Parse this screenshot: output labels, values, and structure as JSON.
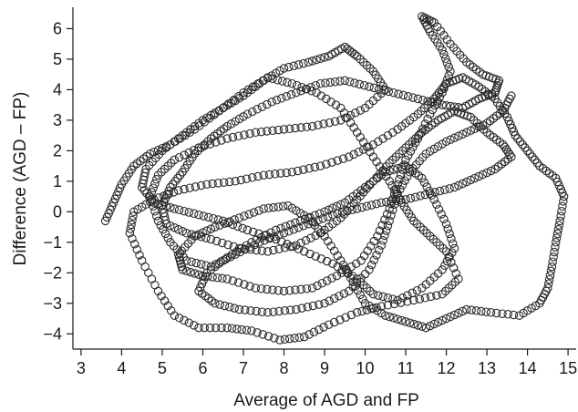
{
  "chart_data": {
    "type": "scatter",
    "title": "",
    "xlabel": "Average of AGD and FP",
    "ylabel": "Difference (AGD – FP)",
    "xlim": [
      2.8,
      15.2
    ],
    "ylim": [
      -4.5,
      6.7
    ],
    "xticks": [
      "3",
      "4",
      "5",
      "6",
      "7",
      "8",
      "9",
      "10",
      "11",
      "12",
      "13",
      "14",
      "15"
    ],
    "yticks": [
      "-4",
      "-3",
      "-2",
      "-1",
      "0",
      "1",
      "2",
      "3",
      "4",
      "5",
      "6"
    ],
    "grid": false,
    "marker": "open-circle",
    "marker_color": "#2a2a2a",
    "series": [
      {
        "values": [
          [
            3.6,
            -0.3
          ],
          [
            3.8,
            0.3
          ],
          [
            4.0,
            0.9
          ],
          [
            4.3,
            1.5
          ],
          [
            4.7,
            1.9
          ],
          [
            5.2,
            2.2
          ],
          [
            5.8,
            2.7
          ],
          [
            6.4,
            3.3
          ],
          [
            7.0,
            3.9
          ],
          [
            7.6,
            4.4
          ],
          [
            8.2,
            4.2
          ],
          [
            8.8,
            3.9
          ],
          [
            9.4,
            3.4
          ],
          [
            9.8,
            2.6
          ],
          [
            10.2,
            1.8
          ],
          [
            10.6,
            1.0
          ],
          [
            10.9,
            0.3
          ],
          [
            11.2,
            -0.3
          ],
          [
            11.6,
            -0.8
          ],
          [
            12.0,
            -1.3
          ],
          [
            12.3,
            -2.2
          ],
          [
            11.9,
            -2.7
          ],
          [
            11.2,
            -2.9
          ],
          [
            10.4,
            -3.1
          ],
          [
            9.8,
            -3.3
          ],
          [
            9.1,
            -3.7
          ],
          [
            8.5,
            -4.1
          ],
          [
            7.9,
            -4.2
          ],
          [
            7.2,
            -3.9
          ],
          [
            6.6,
            -3.8
          ],
          [
            5.9,
            -3.8
          ],
          [
            5.3,
            -3.4
          ],
          [
            4.9,
            -2.6
          ],
          [
            4.5,
            -1.6
          ],
          [
            4.2,
            -0.7
          ],
          [
            4.3,
            0.0
          ],
          [
            4.8,
            0.4
          ],
          [
            5.4,
            0.7
          ],
          [
            6.1,
            0.9
          ],
          [
            6.8,
            1.0
          ],
          [
            7.5,
            1.2
          ],
          [
            8.2,
            1.3
          ],
          [
            8.9,
            1.5
          ],
          [
            9.6,
            1.8
          ],
          [
            10.2,
            2.2
          ],
          [
            10.8,
            2.7
          ],
          [
            11.3,
            3.2
          ],
          [
            11.7,
            3.7
          ],
          [
            12.0,
            4.2
          ],
          [
            12.4,
            4.4
          ],
          [
            12.8,
            4.1
          ],
          [
            13.2,
            3.7
          ],
          [
            13.5,
            3.1
          ],
          [
            13.7,
            2.5
          ],
          [
            14.0,
            2.0
          ],
          [
            14.3,
            1.5
          ],
          [
            14.7,
            1.1
          ],
          [
            14.9,
            0.5
          ],
          [
            14.8,
            -0.3
          ],
          [
            14.7,
            -1.0
          ],
          [
            14.6,
            -1.8
          ],
          [
            14.5,
            -2.5
          ],
          [
            14.3,
            -3.0
          ],
          [
            13.8,
            -3.4
          ],
          [
            13.1,
            -3.3
          ],
          [
            12.5,
            -3.2
          ],
          [
            12.0,
            -3.5
          ],
          [
            11.5,
            -3.8
          ],
          [
            11.0,
            -3.6
          ],
          [
            10.5,
            -3.4
          ],
          [
            10.0,
            -3.0
          ],
          [
            9.7,
            -2.3
          ],
          [
            9.4,
            -1.6
          ],
          [
            9.0,
            -0.8
          ],
          [
            8.6,
            -0.2
          ],
          [
            8.1,
            0.2
          ],
          [
            7.5,
            0.1
          ],
          [
            6.9,
            -0.2
          ],
          [
            6.3,
            -0.5
          ],
          [
            5.8,
            -0.8
          ],
          [
            5.4,
            -1.4
          ],
          [
            5.5,
            -1.9
          ],
          [
            6.0,
            -2.1
          ],
          [
            6.6,
            -2.2
          ],
          [
            7.3,
            -2.5
          ],
          [
            8.0,
            -2.6
          ],
          [
            8.7,
            -2.5
          ],
          [
            9.3,
            -2.1
          ],
          [
            9.9,
            -1.6
          ],
          [
            10.3,
            -0.8
          ],
          [
            10.6,
            0.1
          ],
          [
            10.8,
            0.9
          ],
          [
            11.0,
            1.7
          ],
          [
            11.3,
            2.4
          ],
          [
            11.6,
            3.2
          ],
          [
            11.9,
            3.9
          ],
          [
            12.1,
            4.6
          ],
          [
            11.9,
            5.3
          ],
          [
            11.6,
            5.9
          ],
          [
            11.4,
            6.4
          ],
          [
            11.7,
            6.2
          ],
          [
            12.1,
            5.5
          ],
          [
            12.5,
            4.9
          ],
          [
            12.9,
            4.5
          ],
          [
            13.3,
            4.3
          ],
          [
            13.2,
            3.9
          ],
          [
            12.8,
            3.7
          ],
          [
            12.4,
            3.4
          ],
          [
            11.9,
            3.5
          ],
          [
            11.3,
            3.7
          ],
          [
            10.7,
            3.9
          ],
          [
            10.1,
            4.1
          ],
          [
            9.5,
            4.3
          ],
          [
            8.9,
            4.2
          ],
          [
            8.3,
            3.9
          ],
          [
            7.7,
            3.6
          ],
          [
            7.1,
            3.2
          ],
          [
            6.6,
            2.8
          ],
          [
            6.2,
            2.4
          ],
          [
            5.8,
            1.9
          ],
          [
            5.5,
            1.3
          ],
          [
            5.2,
            0.8
          ],
          [
            5.0,
            0.2
          ],
          [
            5.1,
            -0.4
          ],
          [
            5.6,
            -0.7
          ],
          [
            6.2,
            -0.9
          ],
          [
            6.9,
            -1.2
          ],
          [
            7.6,
            -1.3
          ],
          [
            8.3,
            -1.1
          ],
          [
            8.9,
            -0.7
          ],
          [
            9.4,
            -0.2
          ],
          [
            9.8,
            0.4
          ],
          [
            10.2,
            1.0
          ],
          [
            10.6,
            1.6
          ],
          [
            11.0,
            2.1
          ],
          [
            11.4,
            2.6
          ],
          [
            11.8,
            3.0
          ],
          [
            12.2,
            3.3
          ],
          [
            12.6,
            3.1
          ],
          [
            13.0,
            2.6
          ],
          [
            13.4,
            2.2
          ],
          [
            13.6,
            1.8
          ],
          [
            13.2,
            1.4
          ],
          [
            12.7,
            1.1
          ],
          [
            12.2,
            0.8
          ],
          [
            11.6,
            0.6
          ],
          [
            11.0,
            0.4
          ],
          [
            10.4,
            0.3
          ],
          [
            9.8,
            0.1
          ],
          [
            9.2,
            -0.1
          ],
          [
            8.6,
            -0.4
          ],
          [
            8.0,
            -0.7
          ],
          [
            7.4,
            -1.0
          ],
          [
            6.8,
            -1.4
          ],
          [
            6.2,
            -1.8
          ],
          [
            5.6,
            -1.6
          ],
          [
            5.2,
            -1.0
          ],
          [
            4.9,
            -0.3
          ],
          [
            4.7,
            0.5
          ],
          [
            4.9,
            1.2
          ],
          [
            5.3,
            1.7
          ],
          [
            5.9,
            2.1
          ],
          [
            6.6,
            2.4
          ],
          [
            7.3,
            2.6
          ],
          [
            8.0,
            2.7
          ],
          [
            8.7,
            2.8
          ],
          [
            9.4,
            3.0
          ],
          [
            10.0,
            3.4
          ],
          [
            10.5,
            4.0
          ],
          [
            10.2,
            4.6
          ],
          [
            9.8,
            5.1
          ],
          [
            9.5,
            5.4
          ],
          [
            9.1,
            5.1
          ],
          [
            8.6,
            4.9
          ],
          [
            8.0,
            4.7
          ],
          [
            7.5,
            4.3
          ],
          [
            7.0,
            3.8
          ],
          [
            6.5,
            3.4
          ],
          [
            6.0,
            3.0
          ],
          [
            5.5,
            2.5
          ],
          [
            5.0,
            2.0
          ],
          [
            4.6,
            1.4
          ],
          [
            4.5,
            0.8
          ],
          [
            4.8,
            0.3
          ],
          [
            5.3,
            0.1
          ],
          [
            5.9,
            -0.1
          ],
          [
            6.5,
            -0.3
          ],
          [
            7.1,
            -0.6
          ],
          [
            7.8,
            -0.9
          ],
          [
            8.5,
            -1.3
          ],
          [
            9.2,
            -1.7
          ],
          [
            9.8,
            -2.2
          ],
          [
            10.2,
            -2.7
          ],
          [
            10.8,
            -2.9
          ],
          [
            11.4,
            -2.5
          ],
          [
            11.9,
            -1.9
          ],
          [
            12.2,
            -1.2
          ],
          [
            12.0,
            -0.4
          ],
          [
            11.7,
            0.4
          ],
          [
            11.4,
            1.1
          ],
          [
            11.0,
            1.5
          ],
          [
            10.5,
            1.3
          ],
          [
            10.0,
            0.8
          ],
          [
            9.5,
            0.3
          ],
          [
            9.0,
            0.0
          ],
          [
            8.4,
            -0.3
          ],
          [
            7.8,
            -0.6
          ],
          [
            7.2,
            -1.0
          ],
          [
            6.6,
            -1.5
          ],
          [
            6.1,
            -2.0
          ],
          [
            5.9,
            -2.6
          ],
          [
            6.3,
            -3.0
          ],
          [
            6.9,
            -3.2
          ],
          [
            7.6,
            -3.3
          ],
          [
            8.3,
            -3.2
          ],
          [
            9.0,
            -3.0
          ],
          [
            9.6,
            -2.6
          ],
          [
            10.1,
            -1.9
          ],
          [
            10.4,
            -1.1
          ],
          [
            10.6,
            -0.3
          ],
          [
            10.8,
            0.6
          ],
          [
            11.1,
            1.3
          ],
          [
            11.5,
            1.9
          ],
          [
            12.0,
            2.3
          ],
          [
            12.5,
            2.6
          ],
          [
            13.0,
            2.9
          ],
          [
            13.4,
            3.3
          ],
          [
            13.6,
            3.8
          ]
        ]
      }
    ]
  }
}
